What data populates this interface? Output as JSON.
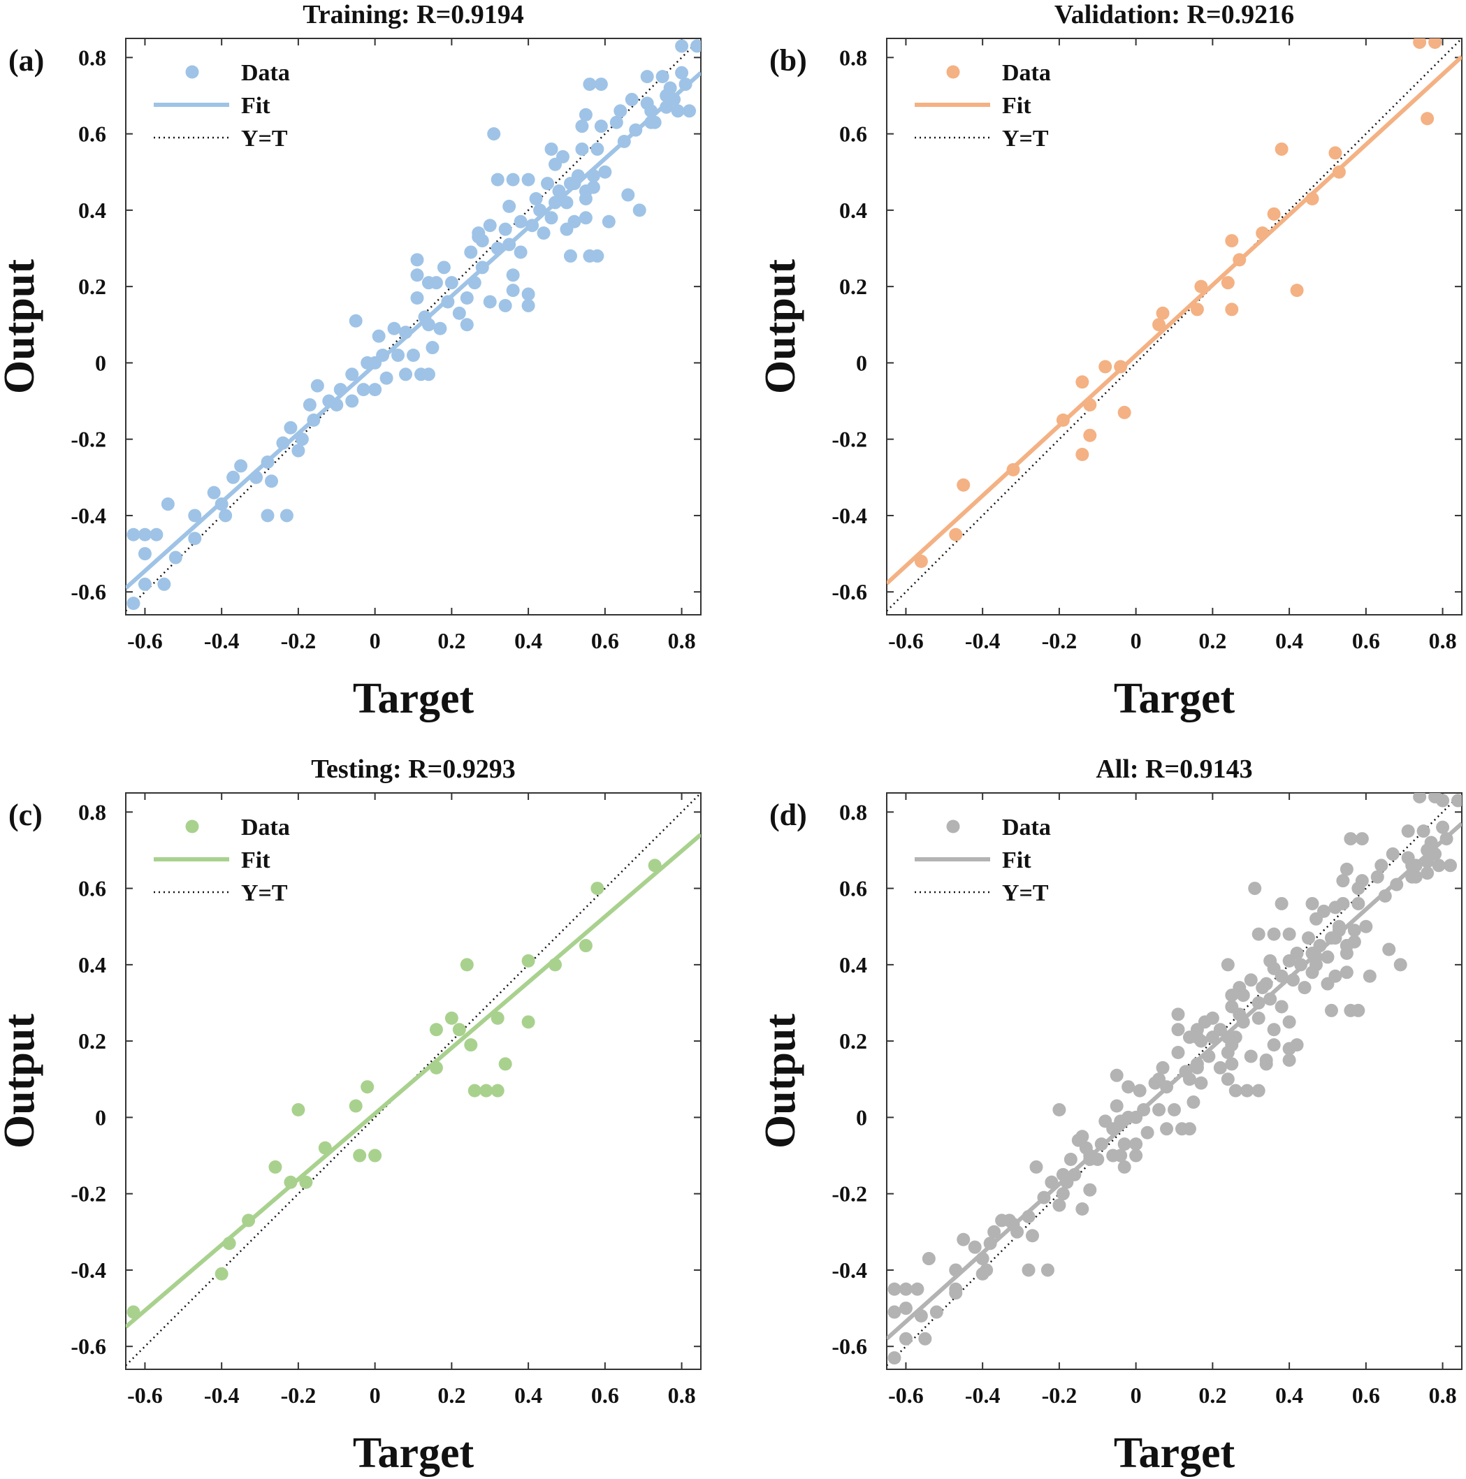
{
  "colors": {
    "training": "#9ec3e6",
    "validation": "#f4b183",
    "testing": "#a9d18e",
    "all": "#b3b3b3",
    "identity": "#111111"
  },
  "chart_data": [
    {
      "type": "scatter",
      "panel_label": "(a)",
      "title": "Training: R=0.9194",
      "xlabel": "Target",
      "ylabel": "Output",
      "xlim": [
        -0.65,
        0.85
      ],
      "ylim": [
        -0.66,
        0.85
      ],
      "xticks": [
        -0.6,
        -0.4,
        -0.2,
        0,
        0.2,
        0.4,
        0.6,
        0.8
      ],
      "xtick_labels": [
        "-0.6",
        "-0.4",
        "-0.2",
        "0",
        "0.2",
        "0.4",
        "0.6",
        "0.8"
      ],
      "yticks": [
        -0.6,
        -0.4,
        -0.2,
        0,
        0.2,
        0.4,
        0.6,
        0.8
      ],
      "ytick_labels": [
        "-0.6",
        "-0.4",
        "-0.2",
        "0",
        "0.2",
        "0.4",
        "0.6",
        "0.8"
      ],
      "grid": false,
      "legend_position": "top-left",
      "legend": [
        "Data",
        "Fit",
        "Y=T"
      ],
      "color_key": "training",
      "fit": {
        "slope": 0.9,
        "intercept": -0.005
      },
      "points": [
        [
          -0.63,
          -0.63
        ],
        [
          -0.63,
          -0.45
        ],
        [
          -0.6,
          -0.45
        ],
        [
          -0.6,
          -0.5
        ],
        [
          -0.6,
          -0.58
        ],
        [
          -0.57,
          -0.45
        ],
        [
          -0.55,
          -0.58
        ],
        [
          -0.54,
          -0.37
        ],
        [
          -0.52,
          -0.51
        ],
        [
          -0.47,
          -0.4
        ],
        [
          -0.47,
          -0.46
        ],
        [
          -0.42,
          -0.34
        ],
        [
          -0.4,
          -0.37
        ],
        [
          -0.39,
          -0.4
        ],
        [
          -0.37,
          -0.3
        ],
        [
          -0.35,
          -0.27
        ],
        [
          -0.31,
          -0.3
        ],
        [
          -0.28,
          -0.26
        ],
        [
          -0.28,
          -0.4
        ],
        [
          -0.27,
          -0.31
        ],
        [
          -0.24,
          -0.21
        ],
        [
          -0.23,
          -0.4
        ],
        [
          -0.22,
          -0.17
        ],
        [
          -0.2,
          -0.23
        ],
        [
          -0.19,
          -0.2
        ],
        [
          -0.17,
          -0.11
        ],
        [
          -0.16,
          -0.15
        ],
        [
          -0.15,
          -0.06
        ],
        [
          -0.12,
          -0.1
        ],
        [
          -0.1,
          -0.11
        ],
        [
          -0.09,
          -0.07
        ],
        [
          -0.06,
          -0.1
        ],
        [
          -0.06,
          -0.03
        ],
        [
          -0.05,
          0.11
        ],
        [
          -0.03,
          -0.07
        ],
        [
          -0.02,
          0.0
        ],
        [
          0.0,
          -0.07
        ],
        [
          0.0,
          0.0
        ],
        [
          0.01,
          0.07
        ],
        [
          0.02,
          0.02
        ],
        [
          0.03,
          -0.04
        ],
        [
          0.05,
          0.09
        ],
        [
          0.06,
          0.02
        ],
        [
          0.08,
          0.08
        ],
        [
          0.08,
          -0.03
        ],
        [
          0.1,
          0.02
        ],
        [
          0.11,
          0.17
        ],
        [
          0.11,
          0.23
        ],
        [
          0.11,
          0.27
        ],
        [
          0.12,
          -0.03
        ],
        [
          0.13,
          0.12
        ],
        [
          0.14,
          0.21
        ],
        [
          0.14,
          0.1
        ],
        [
          0.14,
          -0.03
        ],
        [
          0.15,
          0.04
        ],
        [
          0.16,
          0.21
        ],
        [
          0.17,
          0.09
        ],
        [
          0.18,
          0.25
        ],
        [
          0.19,
          0.16
        ],
        [
          0.2,
          0.21
        ],
        [
          0.22,
          0.13
        ],
        [
          0.24,
          0.17
        ],
        [
          0.24,
          0.1
        ],
        [
          0.25,
          0.29
        ],
        [
          0.26,
          0.21
        ],
        [
          0.27,
          0.33
        ],
        [
          0.27,
          0.34
        ],
        [
          0.28,
          0.25
        ],
        [
          0.28,
          0.32
        ],
        [
          0.3,
          0.36
        ],
        [
          0.3,
          0.16
        ],
        [
          0.31,
          0.6
        ],
        [
          0.32,
          0.3
        ],
        [
          0.32,
          0.48
        ],
        [
          0.34,
          0.35
        ],
        [
          0.34,
          0.15
        ],
        [
          0.35,
          0.41
        ],
        [
          0.35,
          0.31
        ],
        [
          0.36,
          0.48
        ],
        [
          0.36,
          0.23
        ],
        [
          0.36,
          0.19
        ],
        [
          0.38,
          0.29
        ],
        [
          0.38,
          0.37
        ],
        [
          0.4,
          0.15
        ],
        [
          0.4,
          0.18
        ],
        [
          0.4,
          0.48
        ],
        [
          0.41,
          0.36
        ],
        [
          0.42,
          0.43
        ],
        [
          0.43,
          0.4
        ],
        [
          0.44,
          0.34
        ],
        [
          0.45,
          0.47
        ],
        [
          0.46,
          0.38
        ],
        [
          0.46,
          0.56
        ],
        [
          0.47,
          0.52
        ],
        [
          0.47,
          0.42
        ],
        [
          0.48,
          0.45
        ],
        [
          0.49,
          0.54
        ],
        [
          0.5,
          0.35
        ],
        [
          0.5,
          0.42
        ],
        [
          0.51,
          0.47
        ],
        [
          0.51,
          0.28
        ],
        [
          0.52,
          0.37
        ],
        [
          0.52,
          0.47
        ],
        [
          0.53,
          0.49
        ],
        [
          0.54,
          0.62
        ],
        [
          0.54,
          0.56
        ],
        [
          0.55,
          0.65
        ],
        [
          0.55,
          0.45
        ],
        [
          0.55,
          0.38
        ],
        [
          0.55,
          0.43
        ],
        [
          0.56,
          0.73
        ],
        [
          0.56,
          0.28
        ],
        [
          0.57,
          0.49
        ],
        [
          0.57,
          0.46
        ],
        [
          0.58,
          0.28
        ],
        [
          0.58,
          0.56
        ],
        [
          0.59,
          0.73
        ],
        [
          0.59,
          0.62
        ],
        [
          0.6,
          0.5
        ],
        [
          0.61,
          0.37
        ],
        [
          0.63,
          0.63
        ],
        [
          0.64,
          0.66
        ],
        [
          0.65,
          0.58
        ],
        [
          0.66,
          0.44
        ],
        [
          0.67,
          0.69
        ],
        [
          0.68,
          0.61
        ],
        [
          0.69,
          0.4
        ],
        [
          0.71,
          0.75
        ],
        [
          0.71,
          0.68
        ],
        [
          0.72,
          0.63
        ],
        [
          0.72,
          0.66
        ],
        [
          0.73,
          0.63
        ],
        [
          0.75,
          0.75
        ],
        [
          0.76,
          0.7
        ],
        [
          0.76,
          0.67
        ],
        [
          0.77,
          0.72
        ],
        [
          0.78,
          0.69
        ],
        [
          0.79,
          0.66
        ],
        [
          0.8,
          0.76
        ],
        [
          0.8,
          0.83
        ],
        [
          0.81,
          0.73
        ],
        [
          0.82,
          0.66
        ],
        [
          0.84,
          0.83
        ]
      ]
    },
    {
      "type": "scatter",
      "panel_label": "(b)",
      "title": "Validation: R=0.9216",
      "xlabel": "Target",
      "ylabel": "Output",
      "xlim": [
        -0.65,
        0.85
      ],
      "ylim": [
        -0.66,
        0.85
      ],
      "xticks": [
        -0.6,
        -0.4,
        -0.2,
        0,
        0.2,
        0.4,
        0.6,
        0.8
      ],
      "xtick_labels": [
        "-0.6",
        "-0.4",
        "-0.2",
        "0",
        "0.2",
        "0.4",
        "0.6",
        "0.8"
      ],
      "yticks": [
        -0.6,
        -0.4,
        -0.2,
        0,
        0.2,
        0.4,
        0.6,
        0.8
      ],
      "ytick_labels": [
        "-0.6",
        "-0.4",
        "-0.2",
        "0",
        "0.2",
        "0.4",
        "0.6",
        "0.8"
      ],
      "grid": false,
      "legend_position": "top-left",
      "legend": [
        "Data",
        "Fit",
        "Y=T"
      ],
      "color_key": "validation",
      "fit": {
        "slope": 0.92,
        "intercept": 0.02
      },
      "points": [
        [
          -0.56,
          -0.52
        ],
        [
          -0.47,
          -0.45
        ],
        [
          -0.45,
          -0.32
        ],
        [
          -0.32,
          -0.28
        ],
        [
          -0.19,
          -0.15
        ],
        [
          -0.14,
          -0.05
        ],
        [
          -0.14,
          -0.24
        ],
        [
          -0.12,
          -0.11
        ],
        [
          -0.12,
          -0.19
        ],
        [
          -0.08,
          -0.01
        ],
        [
          -0.04,
          -0.01
        ],
        [
          -0.03,
          -0.13
        ],
        [
          0.06,
          0.1
        ],
        [
          0.07,
          0.13
        ],
        [
          0.16,
          0.14
        ],
        [
          0.17,
          0.2
        ],
        [
          0.24,
          0.21
        ],
        [
          0.25,
          0.14
        ],
        [
          0.25,
          0.32
        ],
        [
          0.27,
          0.27
        ],
        [
          0.33,
          0.34
        ],
        [
          0.36,
          0.39
        ],
        [
          0.38,
          0.56
        ],
        [
          0.42,
          0.19
        ],
        [
          0.46,
          0.43
        ],
        [
          0.52,
          0.55
        ],
        [
          0.53,
          0.5
        ],
        [
          0.74,
          0.84
        ],
        [
          0.76,
          0.64
        ],
        [
          0.78,
          0.84
        ]
      ]
    },
    {
      "type": "scatter",
      "panel_label": "(c)",
      "title": "Testing: R=0.9293",
      "xlabel": "Target",
      "ylabel": "Output",
      "xlim": [
        -0.65,
        0.85
      ],
      "ylim": [
        -0.66,
        0.85
      ],
      "xticks": [
        -0.6,
        -0.4,
        -0.2,
        0,
        0.2,
        0.4,
        0.6,
        0.8
      ],
      "xtick_labels": [
        "-0.6",
        "-0.4",
        "-0.2",
        "0",
        "0.2",
        "0.4",
        "0.6",
        "0.8"
      ],
      "yticks": [
        -0.6,
        -0.4,
        -0.2,
        0,
        0.2,
        0.4,
        0.6,
        0.8
      ],
      "ytick_labels": [
        "-0.6",
        "-0.4",
        "-0.2",
        "0",
        "0.2",
        "0.4",
        "0.6",
        "0.8"
      ],
      "grid": false,
      "legend_position": "top-left",
      "legend": [
        "Data",
        "Fit",
        "Y=T"
      ],
      "color_key": "testing",
      "fit": {
        "slope": 0.86,
        "intercept": 0.01
      },
      "points": [
        [
          -0.63,
          -0.51
        ],
        [
          -0.4,
          -0.41
        ],
        [
          -0.38,
          -0.33
        ],
        [
          -0.33,
          -0.27
        ],
        [
          -0.26,
          -0.13
        ],
        [
          -0.22,
          -0.17
        ],
        [
          -0.2,
          0.02
        ],
        [
          -0.18,
          -0.17
        ],
        [
          -0.13,
          -0.08
        ],
        [
          -0.05,
          0.03
        ],
        [
          -0.04,
          -0.1
        ],
        [
          -0.02,
          0.08
        ],
        [
          0.0,
          -0.1
        ],
        [
          0.16,
          0.13
        ],
        [
          0.16,
          0.23
        ],
        [
          0.2,
          0.26
        ],
        [
          0.22,
          0.23
        ],
        [
          0.24,
          0.4
        ],
        [
          0.25,
          0.19
        ],
        [
          0.26,
          0.07
        ],
        [
          0.29,
          0.07
        ],
        [
          0.32,
          0.07
        ],
        [
          0.32,
          0.26
        ],
        [
          0.34,
          0.14
        ],
        [
          0.4,
          0.25
        ],
        [
          0.4,
          0.41
        ],
        [
          0.47,
          0.4
        ],
        [
          0.55,
          0.45
        ],
        [
          0.58,
          0.6
        ],
        [
          0.73,
          0.66
        ]
      ]
    },
    {
      "type": "scatter",
      "panel_label": "(d)",
      "title": "All: R=0.9143",
      "xlabel": "Target",
      "ylabel": "Output",
      "xlim": [
        -0.65,
        0.85
      ],
      "ylim": [
        -0.66,
        0.85
      ],
      "xticks": [
        -0.6,
        -0.4,
        -0.2,
        0,
        0.2,
        0.4,
        0.6,
        0.8
      ],
      "xtick_labels": [
        "-0.6",
        "-0.4",
        "-0.2",
        "0",
        "0.2",
        "0.4",
        "0.6",
        "0.8"
      ],
      "yticks": [
        -0.6,
        -0.4,
        -0.2,
        0,
        0.2,
        0.4,
        0.6,
        0.8
      ],
      "ytick_labels": [
        "-0.6",
        "-0.4",
        "-0.2",
        "0",
        "0.2",
        "0.4",
        "0.6",
        "0.8"
      ],
      "grid": false,
      "legend_position": "top-left",
      "legend": [
        "Data",
        "Fit",
        "Y=T"
      ],
      "color_key": "all",
      "fit": {
        "slope": 0.9,
        "intercept": 0.005
      },
      "points_from": [
        0,
        1,
        2
      ]
    }
  ]
}
